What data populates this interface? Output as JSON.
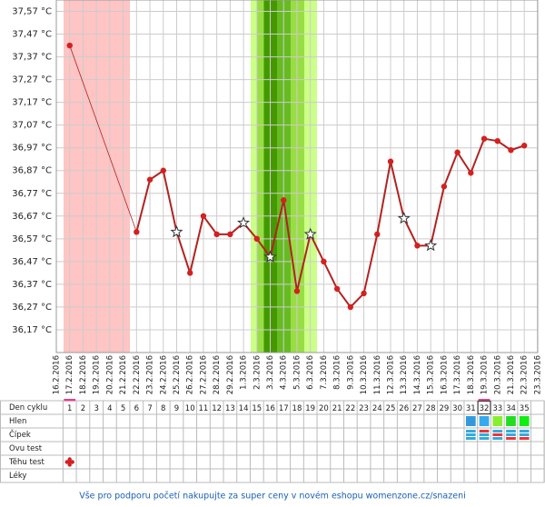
{
  "chart_data": {
    "type": "line",
    "categories": [
      "16.2.2016",
      "17.2.2016",
      "18.2.2016",
      "19.2.2016",
      "20.2.2016",
      "21.2.2016",
      "22.2.2016",
      "23.2.2016",
      "24.2.2016",
      "25.2.2016",
      "26.2.2016",
      "27.2.2016",
      "28.2.2016",
      "29.2.2016",
      "1.3.2016",
      "2.3.2016",
      "3.3.2016",
      "4.3.2016",
      "5.3.2016",
      "6.3.2016",
      "7.3.2016",
      "8.3.2016",
      "9.3.2016",
      "10.3.2016",
      "11.3.2016",
      "12.3.2016",
      "13.3.2016",
      "14.3.2016",
      "15.3.2016",
      "16.3.2016",
      "17.3.2016",
      "18.3.2016",
      "19.3.2016",
      "20.3.2016",
      "21.3.2016",
      "22.3.2016",
      "23.3.2016"
    ],
    "series": [
      {
        "color": "#b22222",
        "values": [
          null,
          37.42,
          null,
          null,
          null,
          null,
          36.6,
          36.83,
          36.87,
          36.6,
          36.42,
          36.67,
          36.59,
          36.59,
          36.64,
          36.57,
          36.49,
          36.74,
          36.34,
          36.59,
          36.47,
          36.35,
          36.27,
          36.33,
          36.59,
          36.91,
          36.66,
          36.54,
          36.54,
          36.8,
          36.95,
          36.86,
          37.01,
          37.0,
          36.96,
          36.98,
          null
        ],
        "markers": [
          null,
          "circle",
          null,
          null,
          null,
          null,
          "circle",
          "circle",
          "circle",
          "star",
          "circle",
          "circle",
          "circle",
          "circle",
          "star",
          "circle",
          "star",
          "circle",
          "circle",
          "star",
          "circle",
          "circle",
          "circle",
          "circle",
          "circle",
          "circle",
          "star",
          "circle",
          "star",
          "circle",
          "circle",
          "circle",
          "circle",
          "circle",
          "circle",
          "circle",
          null
        ]
      }
    ],
    "ylim": [
      36.07,
      37.62
    ],
    "yticks": [
      {
        "value": 37.57,
        "label": "37,57 °C"
      },
      {
        "value": 37.47,
        "label": "37,47 °C"
      },
      {
        "value": 37.37,
        "label": "37,37 °C"
      },
      {
        "value": 37.27,
        "label": "37,27 °C"
      },
      {
        "value": 37.17,
        "label": "37,17 °C"
      },
      {
        "value": 37.07,
        "label": "37,07 °C"
      },
      {
        "value": 36.97,
        "label": "36,97 °C"
      },
      {
        "value": 36.87,
        "label": "36,87 °C"
      },
      {
        "value": 36.77,
        "label": "36,77 °C"
      },
      {
        "value": 36.67,
        "label": "36,67 °C"
      },
      {
        "value": 36.57,
        "label": "36,57 °C"
      },
      {
        "value": 36.47,
        "label": "36,47 °C"
      },
      {
        "value": 36.37,
        "label": "36,37 °C"
      },
      {
        "value": 36.27,
        "label": "36,27 °C"
      },
      {
        "value": 36.17,
        "label": "36,17 °C"
      }
    ],
    "grid": true
  },
  "table": {
    "row_labels": [
      "Den cyklu",
      "Hlen",
      "Čípek",
      "Ovu test",
      "Těhu test",
      "Léky"
    ],
    "cycle_days": [
      1,
      2,
      3,
      4,
      5,
      6,
      7,
      8,
      9,
      10,
      11,
      12,
      13,
      14,
      15,
      16,
      17,
      18,
      19,
      20,
      21,
      22,
      23,
      24,
      25,
      26,
      27,
      28,
      29,
      30,
      31,
      32,
      33,
      34,
      35
    ]
  },
  "footer": "Vše pro podporu početí nakupujte za super ceny v novém eshopu womenzone.cz/snazeni"
}
